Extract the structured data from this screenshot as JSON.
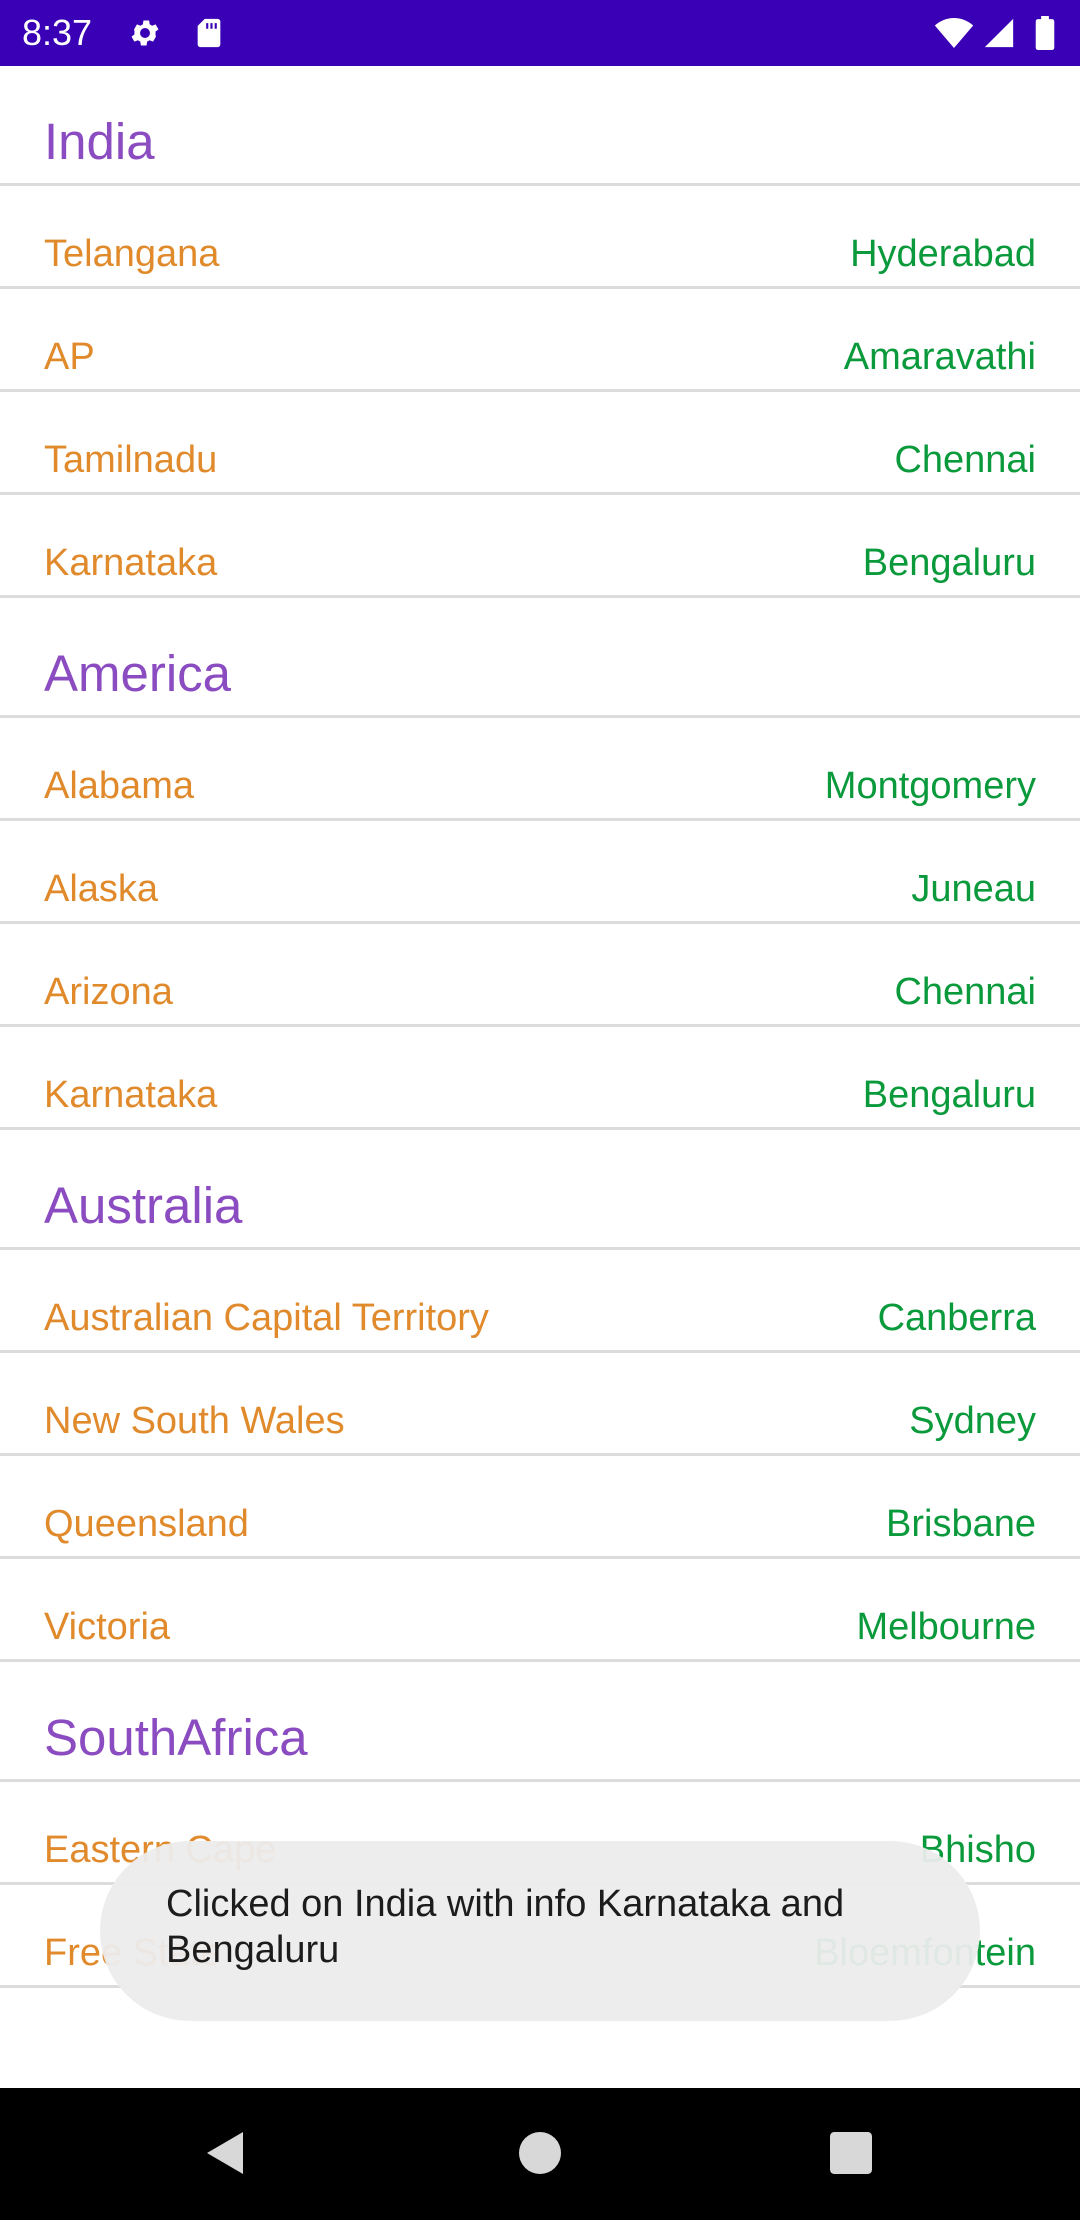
{
  "status_bar": {
    "time": "8:37",
    "icons": [
      "gear-icon",
      "sd-card-icon",
      "wifi-icon",
      "signal-icon",
      "battery-icon"
    ]
  },
  "groups": [
    {
      "title": "India",
      "rows": [
        {
          "state": "Telangana",
          "capital": "Hyderabad"
        },
        {
          "state": "AP",
          "capital": "Amaravathi"
        },
        {
          "state": "Tamilnadu",
          "capital": "Chennai"
        },
        {
          "state": "Karnataka",
          "capital": "Bengaluru"
        }
      ]
    },
    {
      "title": "America",
      "rows": [
        {
          "state": "Alabama",
          "capital": "Montgomery"
        },
        {
          "state": "Alaska",
          "capital": "Juneau"
        },
        {
          "state": "Arizona",
          "capital": "Chennai"
        },
        {
          "state": "Karnataka",
          "capital": "Bengaluru"
        }
      ]
    },
    {
      "title": "Australia",
      "rows": [
        {
          "state": "Australian Capital Territory",
          "capital": "Canberra"
        },
        {
          "state": "New South Wales",
          "capital": "Sydney"
        },
        {
          "state": "Queensland",
          "capital": "Brisbane"
        },
        {
          "state": "Victoria",
          "capital": "Melbourne"
        }
      ]
    },
    {
      "title": "SouthAfrica",
      "rows": [
        {
          "state": "Eastern Cape",
          "capital": "Bhisho"
        },
        {
          "state": "Free State",
          "capital": "Bloemfontein"
        }
      ]
    }
  ],
  "toast": {
    "message": "Clicked on India with info Karnataka and Bengaluru"
  },
  "nav_bar": {
    "icons": [
      "back-icon",
      "home-icon",
      "recents-icon"
    ]
  },
  "colors": {
    "status_bar": "#3a00b6",
    "group_title": "#8a4cc0",
    "state_text": "#e08a2c",
    "capital_text": "#0a9a3c"
  }
}
